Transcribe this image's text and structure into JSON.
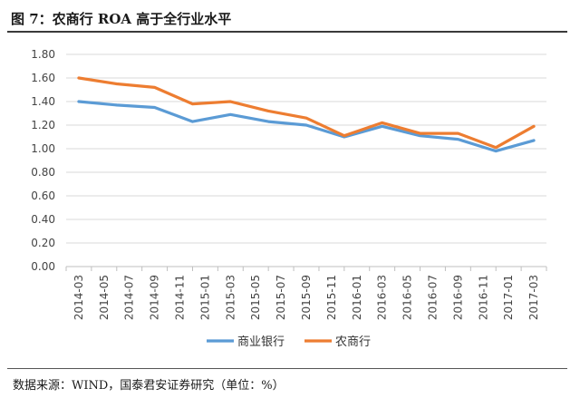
{
  "figure": {
    "title": "图 7：农商行 ROA 高于全行业水平",
    "source": "数据来源：WIND，国泰君安证券研究（单位：%）"
  },
  "chart_data": {
    "type": "line",
    "categories": [
      "2014-03",
      "2014-05",
      "2014-07",
      "2014-09",
      "2014-11",
      "2015-01",
      "2015-03",
      "2015-05",
      "2015-07",
      "2015-09",
      "2015-11",
      "2016-01",
      "2016-03",
      "2016-05",
      "2016-07",
      "2016-09",
      "2016-11",
      "2017-01",
      "2017-03"
    ],
    "y_ticks": [
      "0.00",
      "0.20",
      "0.40",
      "0.60",
      "0.80",
      "1.00",
      "1.20",
      "1.40",
      "1.60",
      "1.80"
    ],
    "ylim": [
      0,
      1.8
    ],
    "grid": true,
    "legend_position": "bottom",
    "series": [
      {
        "name": "商业银行",
        "color": "#5b9bd5",
        "points": [
          [
            "2014-03",
            1.4
          ],
          [
            "2014-06",
            1.37
          ],
          [
            "2014-09",
            1.35
          ],
          [
            "2014-12",
            1.23
          ],
          [
            "2015-03",
            1.29
          ],
          [
            "2015-06",
            1.23
          ],
          [
            "2015-09",
            1.2
          ],
          [
            "2015-12",
            1.1
          ],
          [
            "2016-03",
            1.19
          ],
          [
            "2016-06",
            1.11
          ],
          [
            "2016-09",
            1.08
          ],
          [
            "2016-12",
            0.98
          ],
          [
            "2017-03",
            1.07
          ]
        ]
      },
      {
        "name": "农商行",
        "color": "#ed7d31",
        "points": [
          [
            "2014-03",
            1.6
          ],
          [
            "2014-06",
            1.55
          ],
          [
            "2014-09",
            1.52
          ],
          [
            "2014-12",
            1.38
          ],
          [
            "2015-03",
            1.4
          ],
          [
            "2015-06",
            1.32
          ],
          [
            "2015-09",
            1.26
          ],
          [
            "2015-12",
            1.11
          ],
          [
            "2016-03",
            1.22
          ],
          [
            "2016-06",
            1.13
          ],
          [
            "2016-09",
            1.13
          ],
          [
            "2016-12",
            1.01
          ],
          [
            "2017-03",
            1.19
          ]
        ]
      }
    ]
  }
}
